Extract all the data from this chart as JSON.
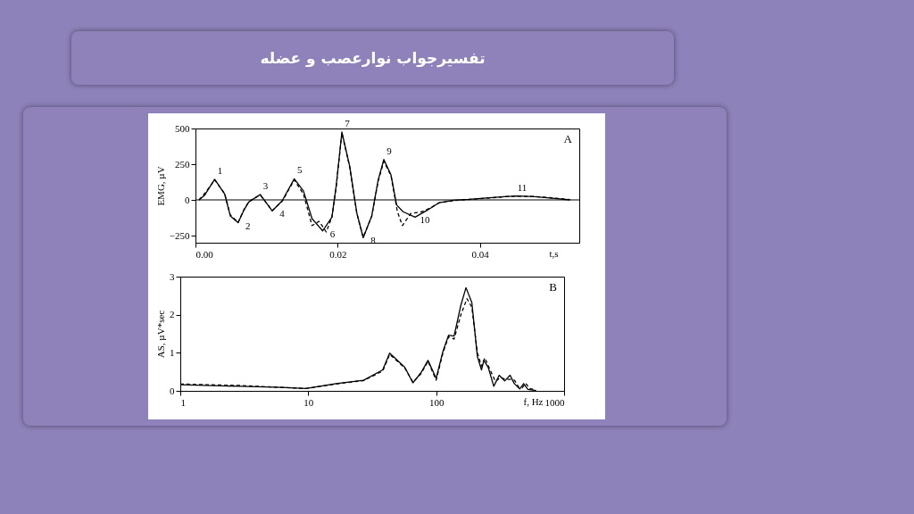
{
  "chart_data": [
    {
      "type": "line",
      "title": "تفسیرجواب نوارعصب و عضله",
      "ylabel": "EMG, µV",
      "xlabel": "t,s",
      "xlim": [
        0,
        0.054
      ],
      "ylim": [
        -300,
        500
      ],
      "xticks": [
        {
          "value": 0,
          "label": "0.00"
        },
        {
          "value": 0.02,
          "label": "0.02"
        },
        {
          "value": 0.04,
          "label": "0.04"
        }
      ],
      "yticks": [
        {
          "value": -250,
          "label": "−250"
        },
        0,
        250,
        500
      ],
      "grid": false,
      "ref_lines": [
        {
          "axis": "y",
          "value": 0,
          "color": "#000000"
        }
      ],
      "annotations": [
        "A",
        {
          "text": "1",
          "x": 0.0027,
          "y": 144
        },
        {
          "text": "2",
          "x": 0.006,
          "y": -160
        },
        {
          "text": "3",
          "x": 0.0091,
          "y": 38
        },
        {
          "text": "4",
          "x": 0.0108,
          "y": -77
        },
        {
          "text": "5",
          "x": 0.0139,
          "y": 148
        },
        {
          "text": "6",
          "x": 0.0179,
          "y": -217
        },
        {
          "text": "7",
          "x": 0.0206,
          "y": 475
        },
        {
          "text": "8",
          "x": 0.0236,
          "y": -265
        },
        {
          "text": "9",
          "x": 0.0265,
          "y": 283
        },
        {
          "text": "10",
          "x": 0.0309,
          "y": -121
        },
        {
          "text": "11",
          "x": 0.0452,
          "y": 27
        }
      ],
      "series": [
        {
          "color": "#000000",
          "line_style": "solid",
          "x": [
            0.0005,
            0.0013,
            0.0027,
            0.0041,
            0.0049,
            0.006,
            0.0068,
            0.0075,
            0.0091,
            0.0108,
            0.0122,
            0.0139,
            0.0152,
            0.0164,
            0.0179,
            0.0192,
            0.0198,
            0.0206,
            0.0217,
            0.0227,
            0.0236,
            0.0248,
            0.0257,
            0.0265,
            0.0275,
            0.0283,
            0.0292,
            0.0309,
            0.0326,
            0.0343,
            0.0364,
            0.0385,
            0.0405,
            0.0435,
            0.0452,
            0.0477,
            0.0502,
            0.0527
          ],
          "values": [
            0,
            33,
            144,
            42,
            -112,
            -160,
            -73,
            -15,
            38,
            -77,
            -6,
            148,
            62,
            -131,
            -217,
            -121,
            100,
            475,
            235,
            -92,
            -265,
            -112,
            138,
            283,
            177,
            -35,
            -83,
            -121,
            -73,
            -19,
            -2,
            4,
            12,
            23,
            27,
            23,
            12,
            0
          ]
        },
        {
          "color": "#000000",
          "line_style": "dashed",
          "x": [
            0.0005,
            0.0013,
            0.0027,
            0.0041,
            0.0049,
            0.006,
            0.0068,
            0.0075,
            0.0091,
            0.0108,
            0.0122,
            0.0139,
            0.0152,
            0.0164,
            0.0174,
            0.0184,
            0.0192,
            0.0198,
            0.0206,
            0.0217,
            0.0227,
            0.0236,
            0.0248,
            0.0257,
            0.0265,
            0.0275,
            0.0284,
            0.0291,
            0.0303,
            0.0317,
            0.0329,
            0.0343,
            0.0364,
            0.0385,
            0.0405,
            0.0435,
            0.0452,
            0.0477,
            0.0502,
            0.0527
          ],
          "values": [
            0,
            45,
            140,
            45,
            -105,
            -158,
            -70,
            -12,
            35,
            -75,
            -10,
            140,
            40,
            -180,
            -150,
            -225,
            -120,
            90,
            468,
            230,
            -95,
            -262,
            -115,
            130,
            270,
            170,
            -80,
            -180,
            -95,
            -85,
            -60,
            -20,
            -5,
            3,
            10,
            22,
            26,
            24,
            14,
            2
          ]
        }
      ]
    },
    {
      "type": "line",
      "ylabel": "AS, µV*sec",
      "xlabel": "f, Hz",
      "log": "x",
      "xlim": [
        1,
        1000
      ],
      "ylim": [
        0,
        3
      ],
      "xticks": [
        1,
        10,
        100,
        1000
      ],
      "yticks": [
        0,
        1,
        2,
        3
      ],
      "grid": false,
      "annotations": [
        "B"
      ],
      "series": [
        {
          "color": "#000000",
          "line_style": "solid",
          "x": [
            1,
            2.94,
            6.2,
            9.6,
            16.5,
            27.1,
            38.2,
            43.3,
            56.8,
            65.8,
            76.2,
            86.3,
            100,
            113,
            125,
            138,
            156,
            171,
            190,
            210,
            226,
            236,
            255,
            282,
            311,
            343,
            378,
            408,
            450,
            483,
            521,
            603
          ],
          "values": [
            0.16,
            0.12,
            0.09,
            0.06,
            0.19,
            0.28,
            0.55,
            0.99,
            0.62,
            0.21,
            0.48,
            0.8,
            0.33,
            1.04,
            1.46,
            1.44,
            2.25,
            2.71,
            2.32,
            0.9,
            0.55,
            0.8,
            0.62,
            0.12,
            0.41,
            0.26,
            0.41,
            0.19,
            0.05,
            0.19,
            0.04,
            0.01
          ]
        },
        {
          "color": "#000000",
          "line_style": "dashed",
          "x": [
            1,
            2.94,
            6.2,
            9.6,
            16.5,
            27.1,
            38.2,
            43.3,
            56.8,
            65.8,
            76.2,
            86.3,
            100,
            113,
            125,
            138,
            156,
            174,
            190,
            210,
            226,
            240,
            260,
            290,
            320,
            350,
            378,
            410,
            440,
            470,
            500,
            540,
            603
          ],
          "values": [
            0.18,
            0.14,
            0.09,
            0.06,
            0.18,
            0.27,
            0.52,
            0.96,
            0.6,
            0.23,
            0.45,
            0.78,
            0.28,
            1.0,
            1.42,
            1.36,
            2.0,
            2.42,
            2.2,
            1.0,
            0.65,
            0.87,
            0.6,
            0.25,
            0.35,
            0.3,
            0.3,
            0.28,
            0.1,
            0.08,
            0.2,
            0.06,
            0.02
          ]
        }
      ]
    }
  ]
}
